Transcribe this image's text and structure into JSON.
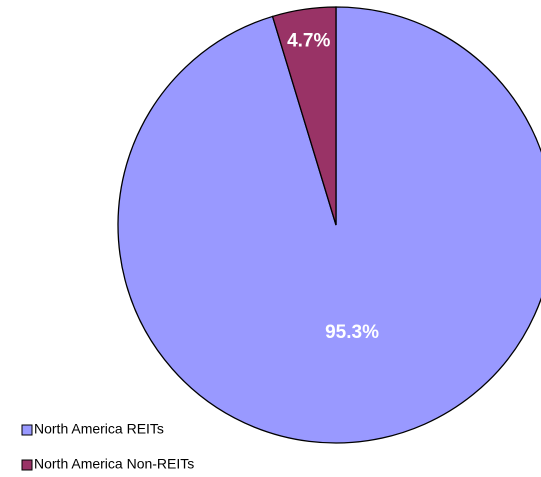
{
  "chart_data": {
    "type": "pie",
    "categories": [
      "North America REITs",
      "North America Non-REITs"
    ],
    "values": [
      95.3,
      4.7
    ],
    "value_labels": [
      "95.3%",
      "4.7%"
    ],
    "colors": [
      "#9999ff",
      "#993366"
    ]
  }
}
